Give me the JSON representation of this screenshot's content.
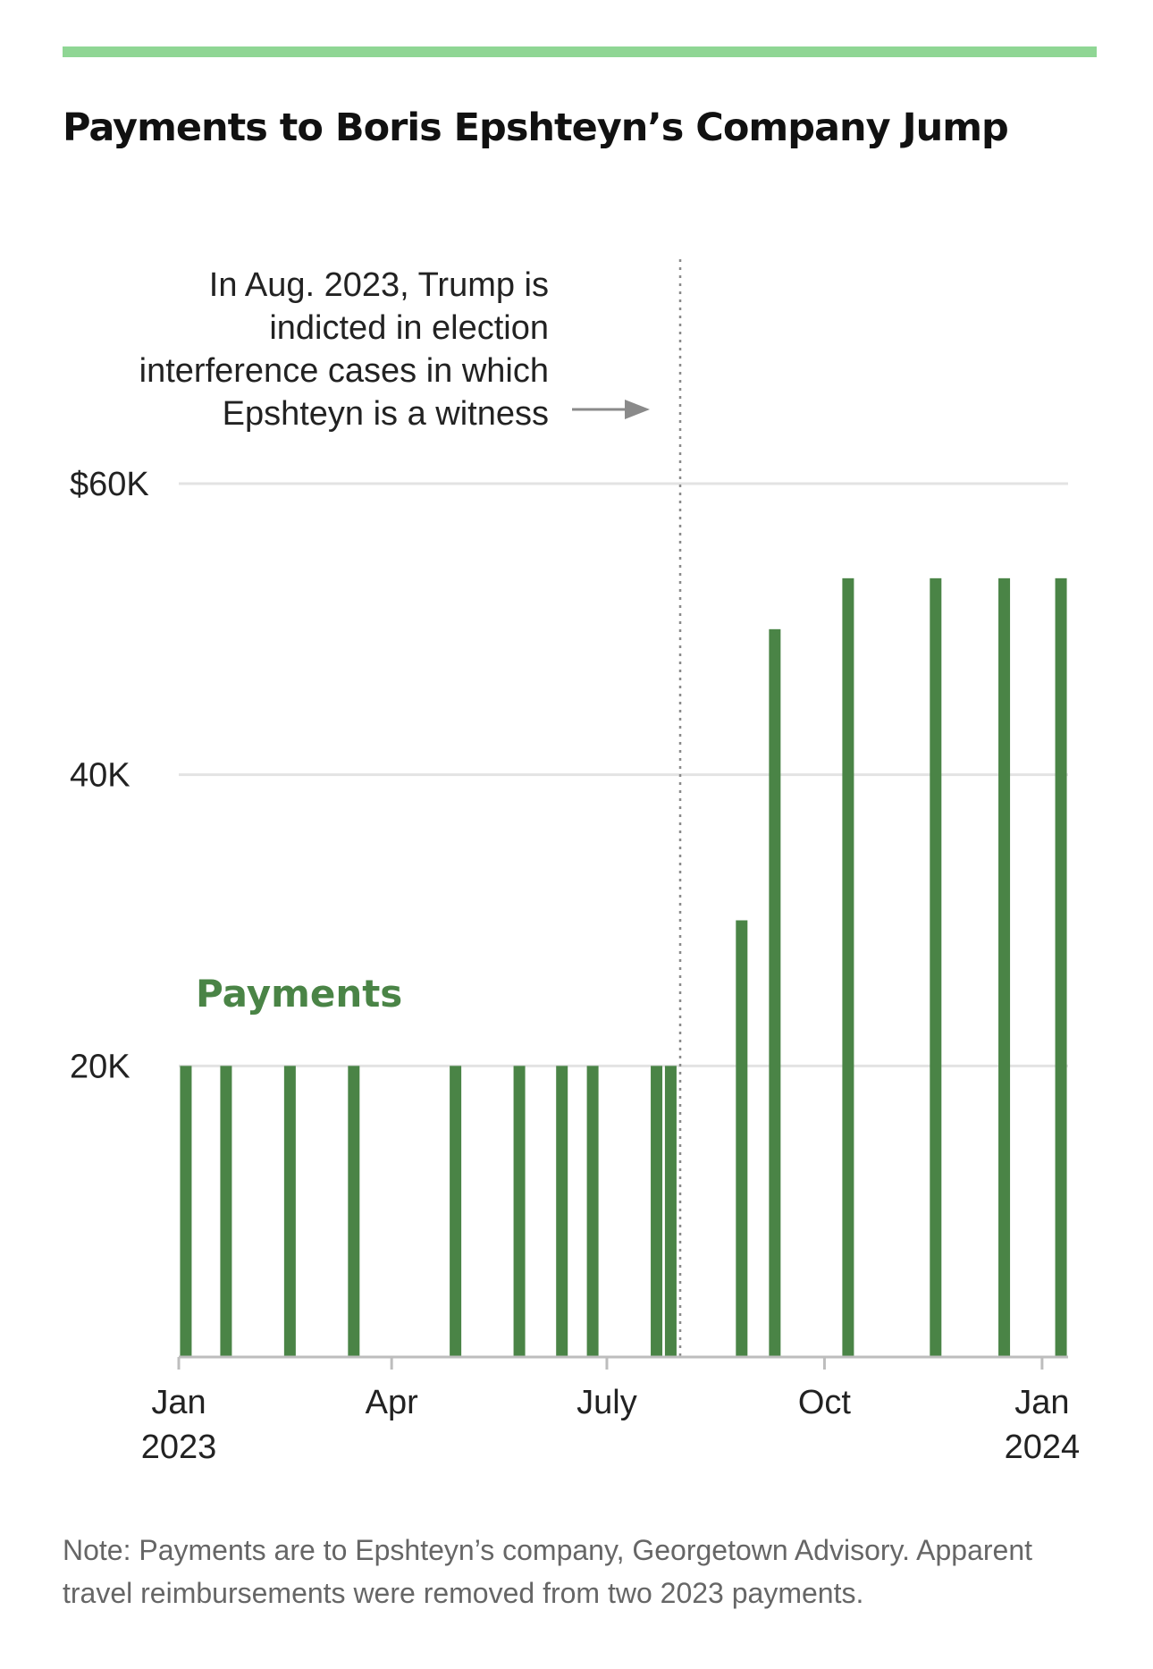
{
  "colors": {
    "accent_rule": "#8fd694",
    "bar": "#4a8446",
    "gridline": "#e3e3e3",
    "axis": "#bdbdbd"
  },
  "title": "Payments to Boris Epshteyn’s Company Jump",
  "note": "Note: Payments are to Epshteyn’s company, Georgetown Advisory. Apparent travel reimbursements were removed from two 2023 payments.",
  "chart_data": {
    "type": "bar",
    "title": "Payments to Boris Epshteyn’s Company Jump",
    "xlabel": "",
    "ylabel": "",
    "ylim": [
      0,
      60000
    ],
    "y_ticks": [
      {
        "value": 20000,
        "label": "20K"
      },
      {
        "value": 40000,
        "label": "40K"
      },
      {
        "value": 60000,
        "label": "$60K"
      }
    ],
    "x_range": [
      "2023-01-01",
      "2024-01-12"
    ],
    "x_ticks": [
      {
        "date": "2023-01-01",
        "lines": [
          "Jan",
          "2023"
        ]
      },
      {
        "date": "2023-04-01",
        "lines": [
          "Apr"
        ]
      },
      {
        "date": "2023-07-01",
        "lines": [
          "July"
        ]
      },
      {
        "date": "2023-10-01",
        "lines": [
          "Oct"
        ]
      },
      {
        "date": "2024-01-01",
        "lines": [
          "Jan",
          "2024"
        ]
      }
    ],
    "grid": true,
    "series": [
      {
        "name": "Payments",
        "x": [
          "2023-01-04",
          "2023-01-21",
          "2023-02-17",
          "2023-03-16",
          "2023-04-28",
          "2023-05-25",
          "2023-06-12",
          "2023-06-25",
          "2023-07-22",
          "2023-07-28",
          "2023-08-27",
          "2023-09-10",
          "2023-10-11",
          "2023-11-17",
          "2023-12-16",
          "2024-01-09"
        ],
        "values": [
          20000,
          20000,
          20000,
          20000,
          20000,
          20000,
          20000,
          20000,
          20000,
          20000,
          30000,
          50000,
          53500,
          53500,
          53500,
          53500
        ]
      }
    ],
    "annotation": {
      "date": "2023-08-01",
      "lines": [
        "In Aug. 2023, Trump is",
        "indicted in election",
        "interference cases in which",
        "Epshteyn is a witness"
      ]
    }
  }
}
